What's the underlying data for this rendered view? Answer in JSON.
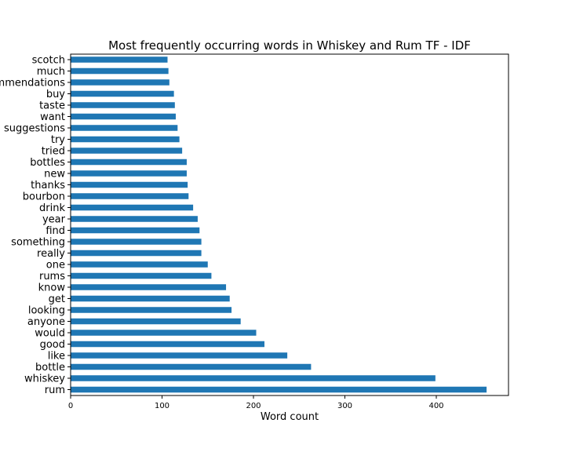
{
  "chart_data": {
    "type": "bar",
    "orientation": "horizontal",
    "title": "Most frequently occurring words in Whiskey and Rum TF - IDF",
    "xlabel": "Word count",
    "ylabel": "",
    "xlim": [
      0,
      480
    ],
    "xticks": [
      "0",
      "100",
      "200",
      "300",
      "400"
    ],
    "grid": false,
    "legend": "none",
    "bar_color": "#1f77b4",
    "categories": [
      "rum",
      "whiskey",
      "bottle",
      "like",
      "good",
      "would",
      "anyone",
      "looking",
      "get",
      "know",
      "rums",
      "one",
      "really",
      "something",
      "find",
      "year",
      "drink",
      "bourbon",
      "thanks",
      "new",
      "bottles",
      "tried",
      "try",
      "suggestions",
      "want",
      "taste",
      "buy",
      "recommendations",
      "much",
      "scotch"
    ],
    "values": [
      455,
      399,
      263,
      237,
      212,
      203,
      186,
      176,
      174,
      170,
      154,
      150,
      143,
      143,
      141,
      139,
      134,
      129,
      128,
      127,
      127,
      122,
      119,
      117,
      115,
      114,
      113,
      108,
      107,
      106
    ]
  }
}
